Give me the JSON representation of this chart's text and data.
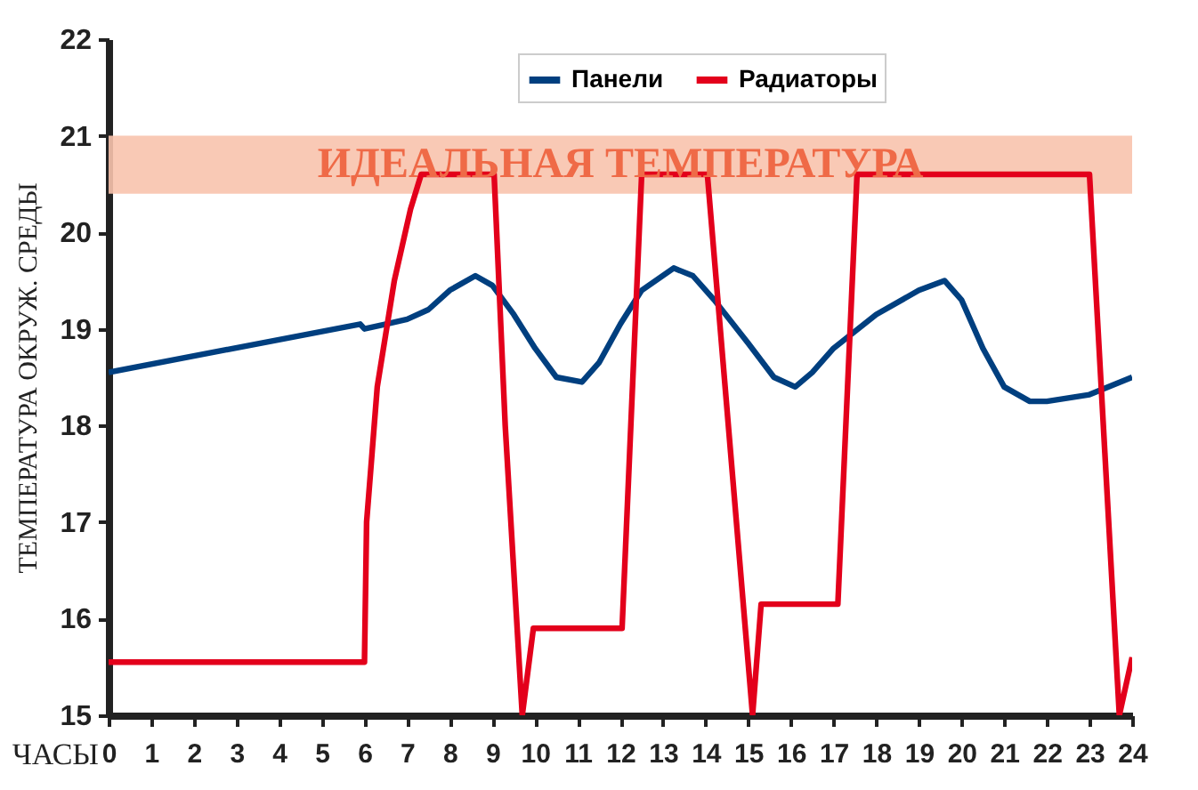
{
  "chart_data": {
    "type": "line",
    "xlabel": "ЧАСЫ",
    "ylabel": "ТЕМПЕРАТУРА ОКРУЖ. СРЕДЫ",
    "xlim": [
      0,
      24
    ],
    "ylim": [
      15,
      22
    ],
    "xticks": [
      0,
      1,
      2,
      3,
      4,
      5,
      6,
      7,
      8,
      9,
      10,
      11,
      12,
      13,
      14,
      15,
      16,
      17,
      18,
      19,
      20,
      21,
      22,
      23,
      24
    ],
    "yticks": [
      15,
      16,
      17,
      18,
      19,
      20,
      21,
      22
    ],
    "grid": false,
    "legend": "top",
    "marker": "none",
    "line_style": "solid",
    "bands": [
      {
        "axis": "y",
        "from": 20.4,
        "to": 21,
        "label": "ИДЕАЛЬНАЯ ТЕМПЕРАТУРА",
        "color": "#f8c3ad"
      }
    ],
    "series": [
      {
        "name": "Панели",
        "color": "#003f7f",
        "x": [
          0,
          5.9,
          6.0,
          6.5,
          7,
          7.5,
          8,
          8.6,
          9,
          9.5,
          10,
          10.5,
          11.1,
          11.5,
          12,
          12.5,
          13.25,
          13.7,
          14.2,
          15,
          15.6,
          16.1,
          16.5,
          17,
          18,
          19,
          19.6,
          20,
          20.5,
          21,
          21.6,
          22,
          23,
          24
        ],
        "values": [
          18.55,
          19.05,
          19.0,
          19.05,
          19.1,
          19.2,
          19.4,
          19.55,
          19.45,
          19.15,
          18.8,
          18.5,
          18.45,
          18.65,
          19.05,
          19.4,
          19.63,
          19.55,
          19.3,
          18.85,
          18.5,
          18.4,
          18.55,
          18.8,
          19.15,
          19.4,
          19.5,
          19.3,
          18.8,
          18.4,
          18.25,
          18.25,
          18.32,
          18.5
        ]
      },
      {
        "name": "Радиаторы",
        "color": "#e3001b",
        "x": [
          0,
          6,
          6.05,
          6.3,
          6.7,
          7.08,
          7.33,
          9.04,
          9.3,
          9.7,
          9.96,
          12.04,
          12.5,
          14.04,
          15.1,
          15.3,
          17.1,
          17.55,
          23.0,
          23.7,
          24
        ],
        "values": [
          15.55,
          15.55,
          17,
          18.4,
          19.5,
          20.24,
          20.6,
          20.6,
          18,
          15,
          15.9,
          15.9,
          20.6,
          20.6,
          15,
          16.15,
          16.15,
          20.6,
          20.6,
          15,
          15.6
        ]
      }
    ]
  }
}
